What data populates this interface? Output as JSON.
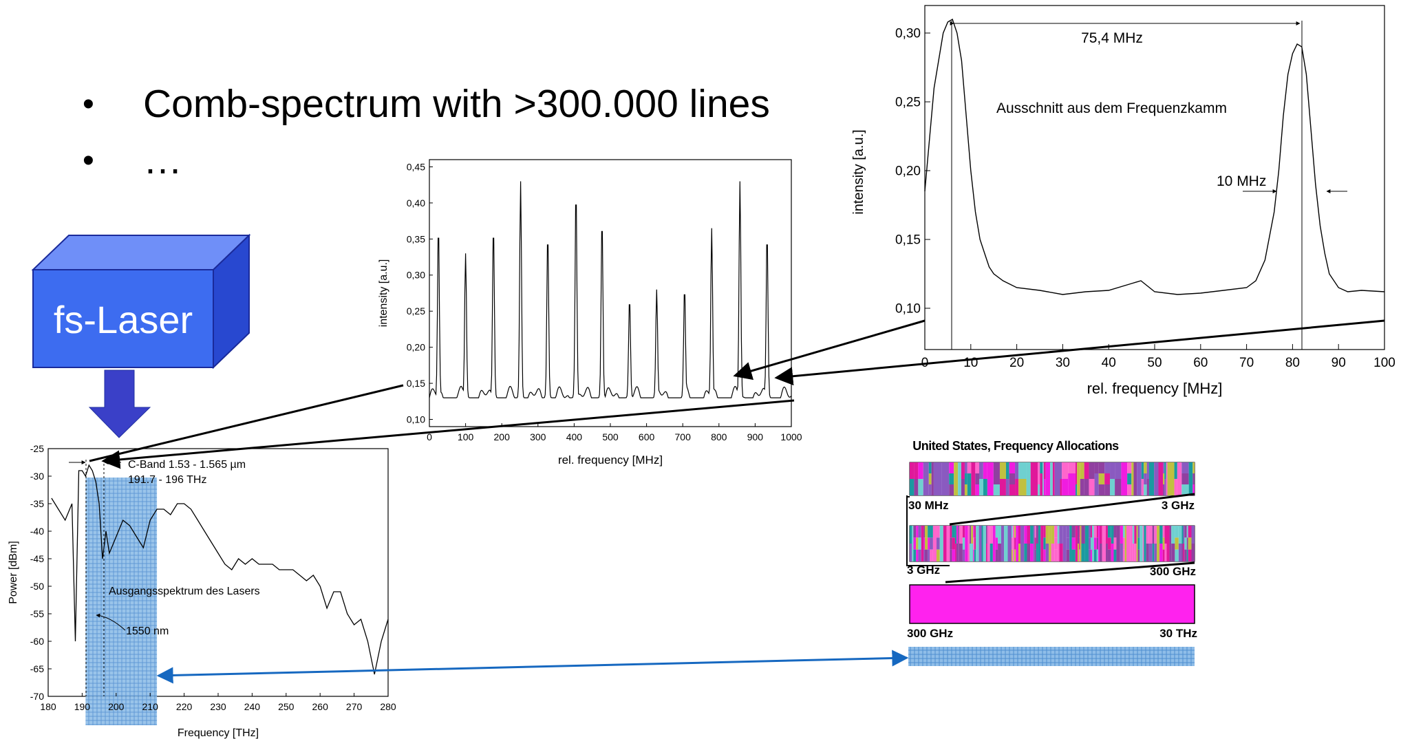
{
  "bullets": [
    "Comb-spectrum with >300.000 lines",
    "…"
  ],
  "laser": {
    "label": "fs-Laser",
    "color": "#3d6cf0"
  },
  "chart_data": [
    {
      "type": "line",
      "title": "",
      "xlabel": "Frequency [THz]",
      "ylabel": "Power [dBm]",
      "xlim": [
        180,
        280
      ],
      "ylim": [
        -70,
        -25
      ],
      "xticks": [
        180,
        190,
        200,
        210,
        220,
        230,
        240,
        250,
        260,
        270,
        280
      ],
      "yticks": [
        -25,
        -30,
        -35,
        -40,
        -45,
        -50,
        -55,
        -60,
        -65,
        -70
      ],
      "annotations": [
        "C-Band 1.53 - 1.565 µm",
        "191.7 - 196 THz",
        "Ausgangsspektrum des Lasers",
        "1550 nm"
      ],
      "highlight_band": [
        191,
        212
      ],
      "series": [
        {
          "x": [
            181,
            183,
            185,
            187,
            188,
            189,
            190,
            191,
            192,
            193,
            194,
            195,
            196,
            197,
            198,
            200,
            202,
            204,
            206,
            208,
            210,
            212,
            214,
            216,
            218,
            220,
            222,
            224,
            226,
            228,
            230,
            232,
            234,
            236,
            238,
            240,
            242,
            244,
            246,
            248,
            250,
            252,
            254,
            256,
            258,
            260,
            262,
            264,
            266,
            268,
            270,
            272,
            274,
            276,
            278,
            280
          ],
          "y": [
            -34,
            -36,
            -38,
            -35,
            -60,
            -29,
            -29,
            -30,
            -28,
            -29,
            -31,
            -35,
            -45,
            -40,
            -44,
            -41,
            -38,
            -39,
            -41,
            -43,
            -38,
            -36,
            -36,
            -37,
            -35,
            -35,
            -36,
            -38,
            -40,
            -42,
            -44,
            -46,
            -47,
            -45,
            -46,
            -45,
            -46,
            -46,
            -46,
            -47,
            -47,
            -47,
            -48,
            -49,
            -48,
            -50,
            -54,
            -51,
            -51,
            -55,
            -57,
            -56,
            -60,
            -66,
            -60,
            -56
          ]
        }
      ]
    },
    {
      "type": "line",
      "title": "",
      "xlabel": "rel. frequency [MHz]",
      "ylabel": "intensity [a.u.]",
      "xlim": [
        0,
        1000
      ],
      "ylim": [
        0.09,
        0.46
      ],
      "xticks": [
        0,
        100,
        200,
        300,
        400,
        500,
        600,
        700,
        800,
        900,
        1000
      ],
      "yticks": [
        "0,10",
        "0,15",
        "0,20",
        "0,25",
        "0,30",
        "0,35",
        "0,40",
        "0,45"
      ],
      "peaks_x": [
        25,
        100,
        177,
        252,
        327,
        405,
        477,
        553,
        628,
        705,
        780,
        858,
        933
      ],
      "peaks_y": [
        0.37,
        0.33,
        0.37,
        0.43,
        0.36,
        0.42,
        0.38,
        0.27,
        0.28,
        0.285,
        0.365,
        0.43,
        0.36
      ],
      "baseline": 0.13
    },
    {
      "type": "line",
      "title": "",
      "xlabel": "rel. frequency [MHz]",
      "ylabel": "intensity [a.u.]",
      "xlim": [
        0,
        100
      ],
      "ylim": [
        0.07,
        0.32
      ],
      "xticks": [
        0,
        10,
        20,
        30,
        40,
        50,
        60,
        70,
        80,
        90,
        100
      ],
      "yticks": [
        "0,10",
        "0,15",
        "0,20",
        "0,25",
        "0,30"
      ],
      "annotations": [
        "75,4 MHz",
        "Ausschnitt aus dem Frequenzkamm",
        "10 MHz"
      ],
      "series": [
        {
          "x": [
            0,
            2,
            4,
            5,
            6,
            7,
            8,
            9,
            10,
            11,
            12,
            13,
            14,
            15,
            17,
            20,
            25,
            30,
            35,
            40,
            45,
            47,
            50,
            55,
            60,
            65,
            70,
            72,
            74,
            76,
            77,
            78,
            79,
            80,
            81,
            82,
            83,
            84,
            85,
            86,
            87,
            88,
            90,
            92,
            95,
            100
          ],
          "y": [
            0.185,
            0.26,
            0.3,
            0.308,
            0.31,
            0.3,
            0.28,
            0.24,
            0.2,
            0.17,
            0.15,
            0.14,
            0.13,
            0.125,
            0.12,
            0.115,
            0.113,
            0.11,
            0.112,
            0.113,
            0.118,
            0.12,
            0.112,
            0.11,
            0.111,
            0.113,
            0.115,
            0.12,
            0.135,
            0.17,
            0.2,
            0.24,
            0.27,
            0.285,
            0.292,
            0.29,
            0.27,
            0.23,
            0.19,
            0.16,
            0.14,
            0.125,
            0.115,
            0.112,
            0.113,
            0.112
          ]
        }
      ]
    }
  ],
  "allocation": {
    "title": "United States, Frequency Allocations",
    "bands": [
      {
        "left": "30 MHz",
        "right": "3 GHz"
      },
      {
        "left": "3 GHz",
        "right": "300 GHz"
      },
      {
        "left": "300 GHz",
        "right": "30 THz"
      }
    ],
    "band_colors": [
      "#e0189a",
      "#1a9aa0",
      "#f01ce0",
      "#8a5ac0",
      "#c0c040",
      "#ff66cc",
      "#6fd0d0",
      "#9040a0"
    ],
    "solid_color": "#ff22ee",
    "hatch_color": "#7ab0e0"
  }
}
